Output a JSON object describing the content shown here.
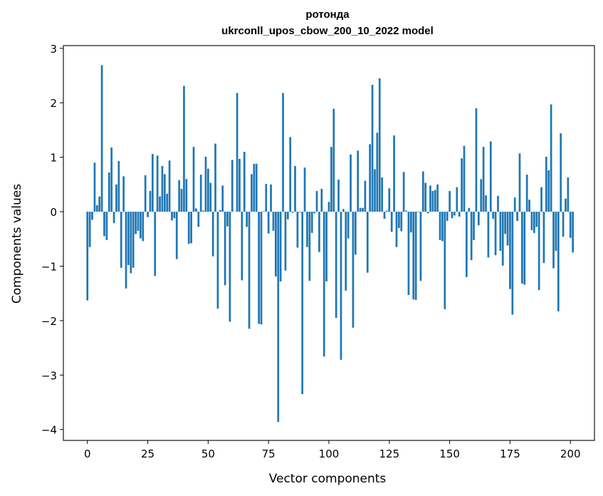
{
  "chart_data": {
    "type": "bar",
    "title_line1": "ротонда",
    "title_line2": "ukrconll_upos_cbow_200_10_2022 model",
    "xlabel": "Vector components",
    "ylabel": "Components values",
    "xlim": [
      -9.95,
      209.95
    ],
    "ylim": [
      -4.2,
      3.05
    ],
    "xticks": [
      0,
      25,
      50,
      75,
      100,
      125,
      150,
      175,
      200
    ],
    "xtick_labels": [
      "0",
      "25",
      "50",
      "75",
      "100",
      "125",
      "150",
      "175",
      "200"
    ],
    "yticks": [
      3,
      2,
      1,
      0,
      -1,
      -2,
      -3,
      -4
    ],
    "ytick_labels": [
      "3",
      "2",
      "1",
      "0",
      "−1",
      "−2",
      "−3",
      "−4"
    ],
    "bar_color": "#1f77b4",
    "grid": false,
    "values": [
      -1.63,
      -0.65,
      -0.15,
      0.9,
      0.12,
      0.28,
      2.69,
      -0.45,
      -0.52,
      0.72,
      1.18,
      -0.21,
      0.5,
      0.93,
      -1.03,
      0.65,
      -1.41,
      -0.98,
      -1.13,
      -1.03,
      -0.41,
      -0.35,
      -0.49,
      -0.54,
      0.67,
      -0.1,
      0.38,
      1.06,
      -1.18,
      1.03,
      0.28,
      0.84,
      0.69,
      0.33,
      0.94,
      -0.16,
      -0.12,
      -0.87,
      0.58,
      0.42,
      2.31,
      0.6,
      -0.59,
      -0.58,
      1.19,
      0.06,
      -0.28,
      0.68,
      0.02,
      1.01,
      0.79,
      0.53,
      -0.82,
      1.25,
      -1.78,
      0.03,
      0.48,
      -1.35,
      -0.27,
      -2.02,
      0.95,
      0.0,
      2.18,
      0.97,
      -1.26,
      1.1,
      -0.28,
      -2.15,
      0.69,
      0.88,
      0.88,
      -2.06,
      -2.07,
      0.01,
      0.51,
      -0.4,
      0.5,
      -0.35,
      -1.19,
      -3.86,
      -1.28,
      2.18,
      -1.08,
      -0.14,
      1.37,
      -0.02,
      0.84,
      -0.66,
      -0.01,
      -3.35,
      0.81,
      -0.65,
      -1.27,
      -0.39,
      -0.03,
      0.38,
      -0.74,
      0.42,
      -2.66,
      -1.28,
      0.18,
      1.19,
      1.89,
      -1.95,
      0.59,
      -2.72,
      0.05,
      -1.45,
      -0.49,
      1.05,
      -2.13,
      -0.79,
      1.12,
      0.07,
      0.07,
      0.57,
      -1.12,
      1.24,
      2.33,
      0.78,
      1.45,
      2.45,
      0.63,
      -0.13,
      0.02,
      0.43,
      -0.37,
      1.4,
      -0.65,
      -0.3,
      -0.36,
      0.73,
      0.02,
      -1.53,
      -0.38,
      -1.61,
      -1.62,
      -0.01,
      -1.27,
      0.74,
      0.53,
      -0.03,
      0.48,
      0.38,
      0.4,
      0.5,
      -0.52,
      -0.54,
      -1.79,
      -0.17,
      0.38,
      -0.12,
      -0.07,
      0.45,
      -0.09,
      0.98,
      1.21,
      -1.2,
      0.07,
      -0.89,
      -0.52,
      1.9,
      -0.25,
      0.6,
      1.19,
      0.3,
      -0.84,
      1.29,
      -0.13,
      -0.8,
      0.29,
      -0.72,
      -0.99,
      -0.41,
      -0.62,
      -1.42,
      -1.89,
      0.26,
      -0.17,
      1.07,
      -1.32,
      -1.34,
      0.68,
      0.22,
      -0.34,
      -0.39,
      -0.28,
      -1.44,
      0.45,
      -0.94,
      1.01,
      0.76,
      1.97,
      -1.04,
      -0.72,
      -1.83,
      1.44,
      -0.46,
      0.24,
      0.63,
      -0.48,
      -0.75
    ]
  }
}
